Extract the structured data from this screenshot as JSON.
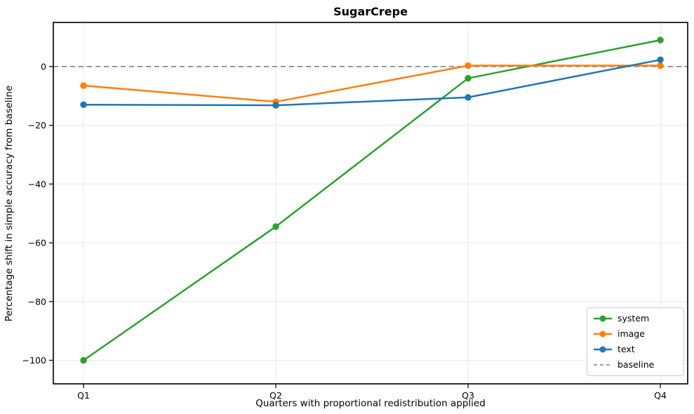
{
  "chart_data": {
    "type": "line",
    "title": "SugarCrepe",
    "xlabel": "Quarters with proportional redistribution applied",
    "ylabel": "Percentage shift in simple accuracy from baseline",
    "categories": [
      "Q1",
      "Q2",
      "Q3",
      "Q4"
    ],
    "series": [
      {
        "name": "system",
        "color": "#2ca02c",
        "values": [
          -100,
          -54.5,
          -4,
          9
        ]
      },
      {
        "name": "image",
        "color": "#ff7f0e",
        "values": [
          -6.5,
          -12,
          0.3,
          0.3
        ]
      },
      {
        "name": "text",
        "color": "#1f77b4",
        "values": [
          -13,
          -13.2,
          -10.5,
          2.3
        ]
      }
    ],
    "baseline": {
      "name": "baseline",
      "value": 0,
      "color": "#808080",
      "style": "dashed"
    },
    "yticks": [
      0,
      -20,
      -40,
      -60,
      -80,
      -100
    ],
    "ylim": [
      -108,
      15
    ],
    "grid": true,
    "grid_color": "#e8e8e8",
    "axis_color": "#1a1a1a",
    "legend_position": "lower right"
  }
}
